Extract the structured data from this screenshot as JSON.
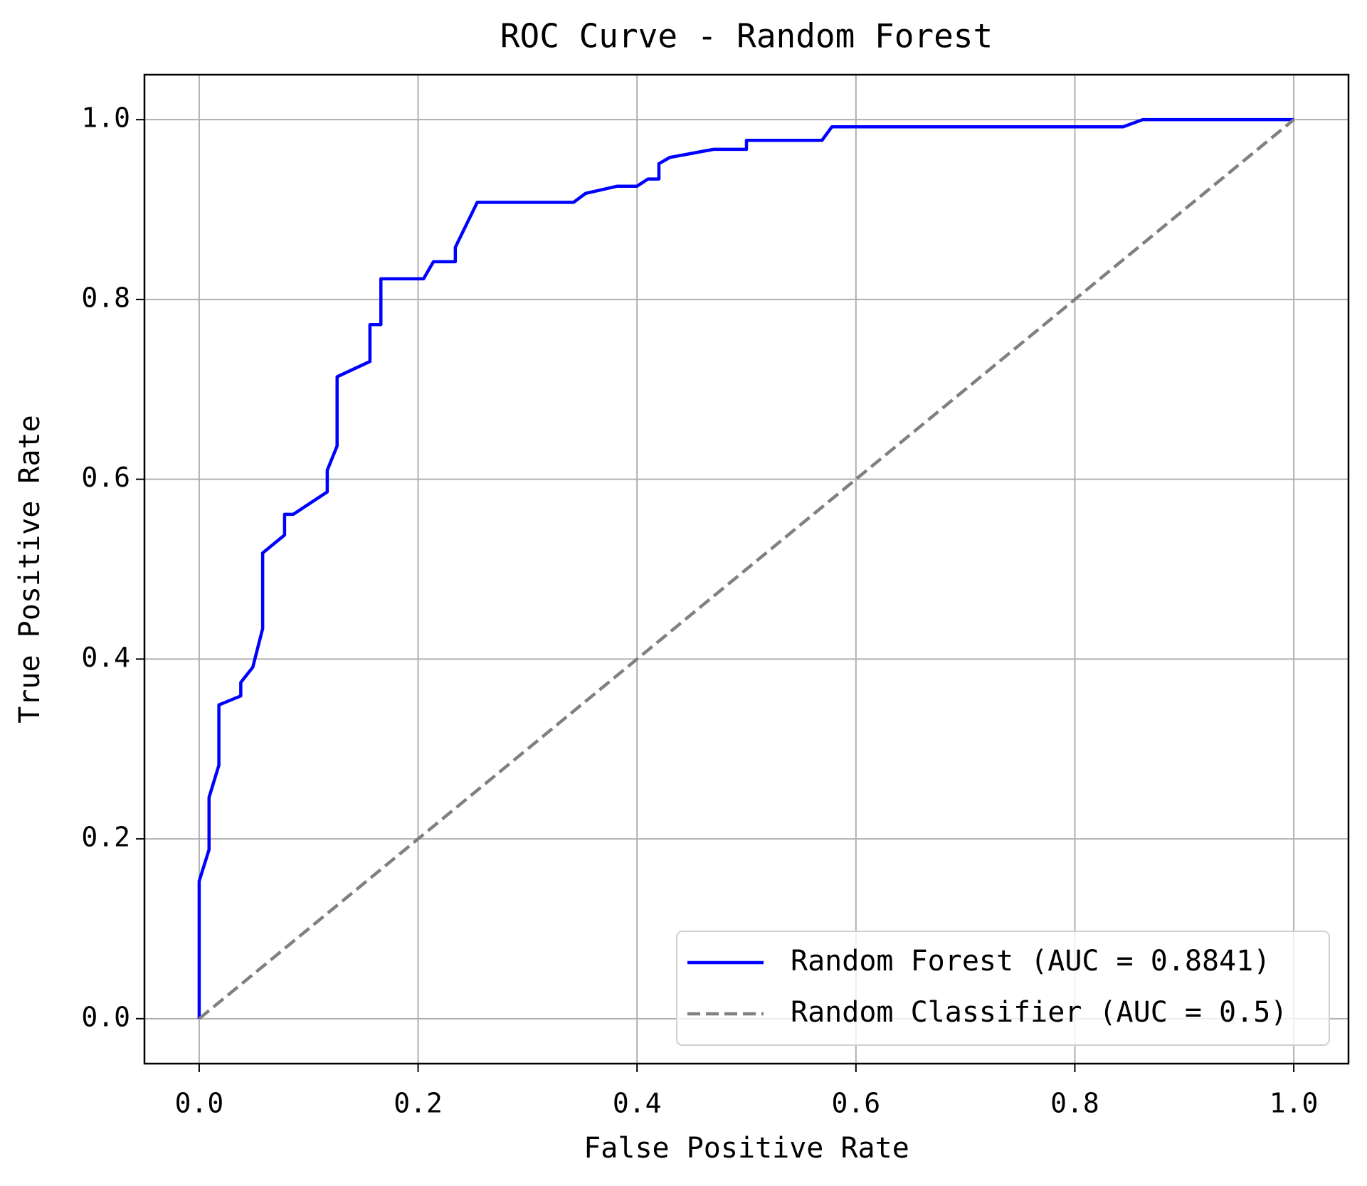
{
  "chart_data": {
    "type": "line",
    "title": "ROC Curve - Random Forest",
    "xlabel": "False Positive Rate",
    "ylabel": "True Positive Rate",
    "xlim": [
      -0.05,
      1.05
    ],
    "ylim": [
      -0.05,
      1.05
    ],
    "xticks": [
      {
        "value": 0,
        "label": "0.0"
      },
      0.2,
      0.4,
      0.6,
      0.8,
      {
        "value": 1,
        "label": "1.0"
      }
    ],
    "yticks": [
      {
        "value": 0,
        "label": "0.0"
      },
      0.2,
      0.4,
      0.6,
      0.8,
      {
        "value": 1,
        "label": "1.0"
      }
    ],
    "grid": true,
    "legend": "lower right",
    "series": [
      {
        "name": "Random Forest (AUC = 0.8841)",
        "color": "#0000ff",
        "style": "solid",
        "x": [
          0,
          0,
          0.009,
          0.009,
          0.018,
          0.018,
          0.038,
          0.038,
          0.049,
          0.058,
          0.058,
          0.078,
          0.078,
          0.086,
          0.117,
          0.117,
          0.126,
          0.126,
          0.156,
          0.156,
          0.166,
          0.166,
          0.205,
          0.214,
          0.234,
          0.234,
          0.254,
          0.342,
          0.353,
          0.382,
          0.4,
          0.41,
          0.42,
          0.42,
          0.43,
          0.47,
          0.5,
          0.5,
          0.569,
          0.578,
          0.844,
          0.862,
          1
        ],
        "values": [
          0,
          0.153,
          0.188,
          0.246,
          0.282,
          0.349,
          0.359,
          0.374,
          0.391,
          0.434,
          0.518,
          0.538,
          0.561,
          0.561,
          0.586,
          0.61,
          0.637,
          0.714,
          0.731,
          0.772,
          0.772,
          0.823,
          0.823,
          0.842,
          0.842,
          0.858,
          0.908,
          0.908,
          0.918,
          0.926,
          0.926,
          0.934,
          0.934,
          0.951,
          0.958,
          0.967,
          0.967,
          0.977,
          0.977,
          0.992,
          0.992,
          1,
          1
        ]
      },
      {
        "name": "Random Classifier (AUC = 0.5)",
        "color": "#808080",
        "style": "dashed",
        "x": [
          0,
          1
        ],
        "values": [
          0,
          1
        ]
      }
    ]
  }
}
